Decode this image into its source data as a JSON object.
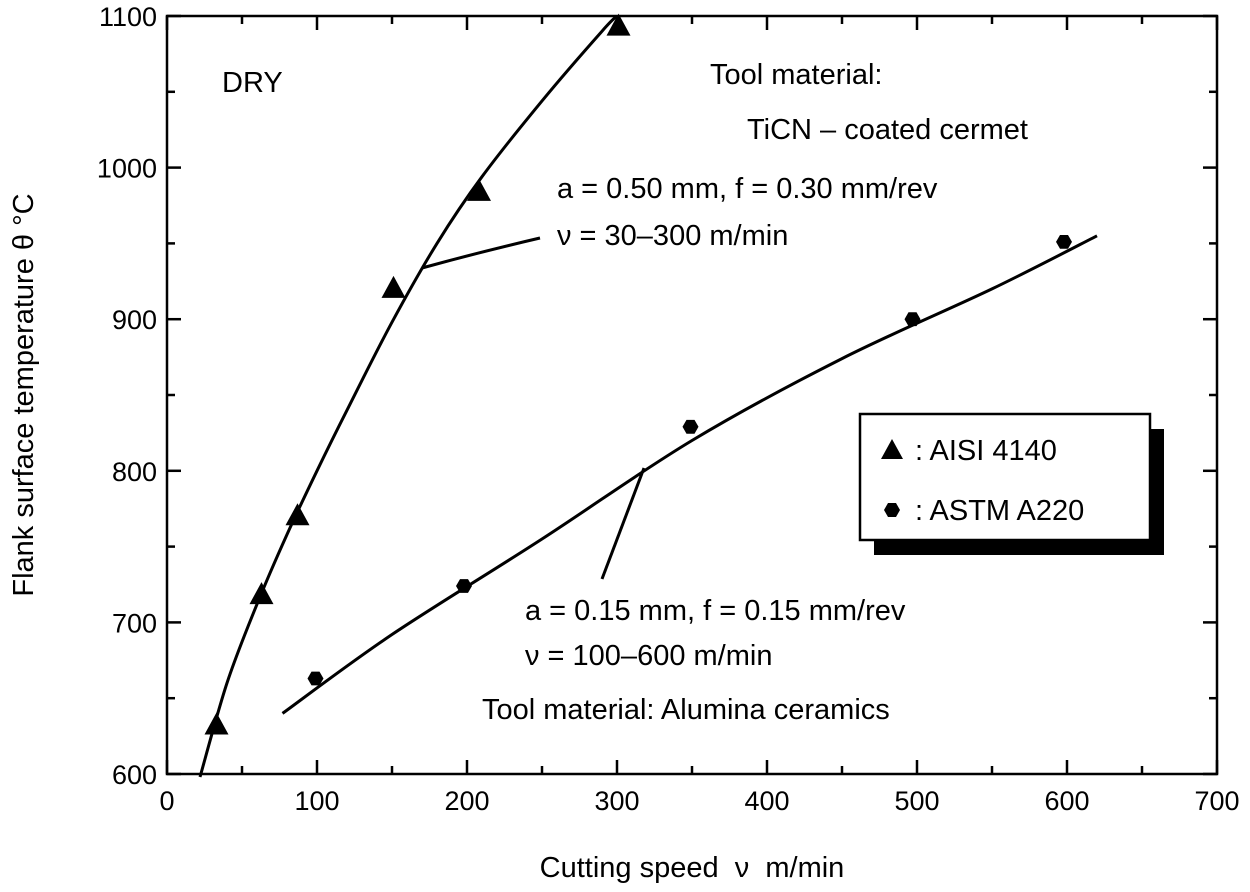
{
  "chart_data": {
    "type": "scatter",
    "xlabel": "Cutting speed  ν  m/min",
    "ylabel": "Flank surface temperature θ °C",
    "xlim": [
      0,
      700
    ],
    "ylim": [
      600,
      1100
    ],
    "x_ticks": [
      0,
      100,
      200,
      300,
      400,
      500,
      600,
      700
    ],
    "y_ticks": [
      600,
      700,
      800,
      900,
      1000,
      1100
    ],
    "grid": false,
    "legend_position": "right",
    "series": [
      {
        "name": ": AISI 4140",
        "marker": "triangle",
        "points": [
          [
            33,
            632
          ],
          [
            63,
            718
          ],
          [
            87,
            770
          ],
          [
            151,
            920
          ],
          [
            208,
            984
          ],
          [
            301,
            1093
          ]
        ],
        "fit_curve": [
          [
            22,
            598
          ],
          [
            40,
            660
          ],
          [
            60,
            712
          ],
          [
            80,
            758
          ],
          [
            100,
            800
          ],
          [
            120,
            840
          ],
          [
            150,
            898
          ],
          [
            180,
            950
          ],
          [
            210,
            994
          ],
          [
            250,
            1044
          ],
          [
            290,
            1090
          ],
          [
            300,
            1100
          ]
        ]
      },
      {
        "name": ": ASTM A220",
        "marker": "hexagon",
        "points": [
          [
            99,
            663
          ],
          [
            198,
            724
          ],
          [
            349,
            829
          ],
          [
            497,
            900
          ],
          [
            598,
            951
          ]
        ],
        "fit_curve": [
          [
            77,
            640
          ],
          [
            150,
            692
          ],
          [
            250,
            755
          ],
          [
            350,
            820
          ],
          [
            450,
            874
          ],
          [
            550,
            920
          ],
          [
            620,
            955
          ]
        ]
      }
    ],
    "annotations": {
      "dry": "DRY",
      "tool1_line1": "Tool material:",
      "tool1_line2": "TiCN – coated cermet",
      "cond1_line1": "a = 0.50 mm, f = 0.30 mm/rev",
      "cond1_line2": "ν = 30–300 m/min",
      "cond2_line1": "a = 0.15 mm, f = 0.15 mm/rev",
      "cond2_line2": "ν = 100–600 m/min",
      "tool2": "Tool material: Alumina ceramics"
    }
  }
}
